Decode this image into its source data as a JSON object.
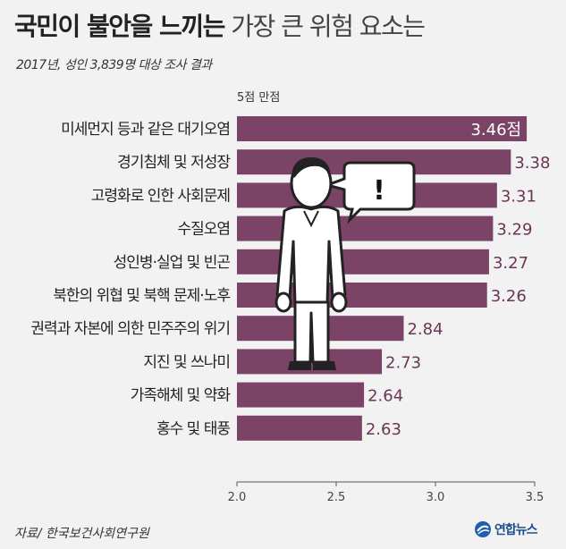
{
  "header": {
    "title_bold": "국민이 불안을 느끼는",
    "title_light": "가장 큰 위험 요소는",
    "subtitle": "2017년, 성인 3,839명 대상 조사 결과"
  },
  "chart_data": {
    "type": "bar",
    "orientation": "horizontal",
    "unit_label": "5점 만점",
    "categories": [
      "미세먼지 등과 같은 대기오염",
      "경기침체 및 저성장",
      "고령화로 인한 사회문제",
      "수질오염",
      "성인병·실업 및 빈곤",
      "북한의 위협 및 북핵 문제·노후",
      "권력과 자본에 의한 민주주의 위기",
      "지진 및 쓰나미",
      "가족해체 및 약화",
      "홍수 및 태풍"
    ],
    "values": [
      3.46,
      3.38,
      3.31,
      3.29,
      3.27,
      3.26,
      2.84,
      2.73,
      2.64,
      2.63
    ],
    "value_labels": [
      "3.46점",
      "3.38",
      "3.31",
      "3.29",
      "3.27",
      "3.26",
      "2.84",
      "2.73",
      "2.64",
      "2.63"
    ],
    "xlim": [
      2.0,
      3.5
    ],
    "ticks": [
      "2.0",
      "2.5",
      "3.0",
      "3.5"
    ],
    "grid": false,
    "bar_color": "#7b4467"
  },
  "footer": {
    "source": "자료/ 한국보건사회연구원",
    "logo_text": "연합뉴스"
  },
  "illustration": {
    "figure": "person-icon",
    "bubble_text": "!"
  }
}
